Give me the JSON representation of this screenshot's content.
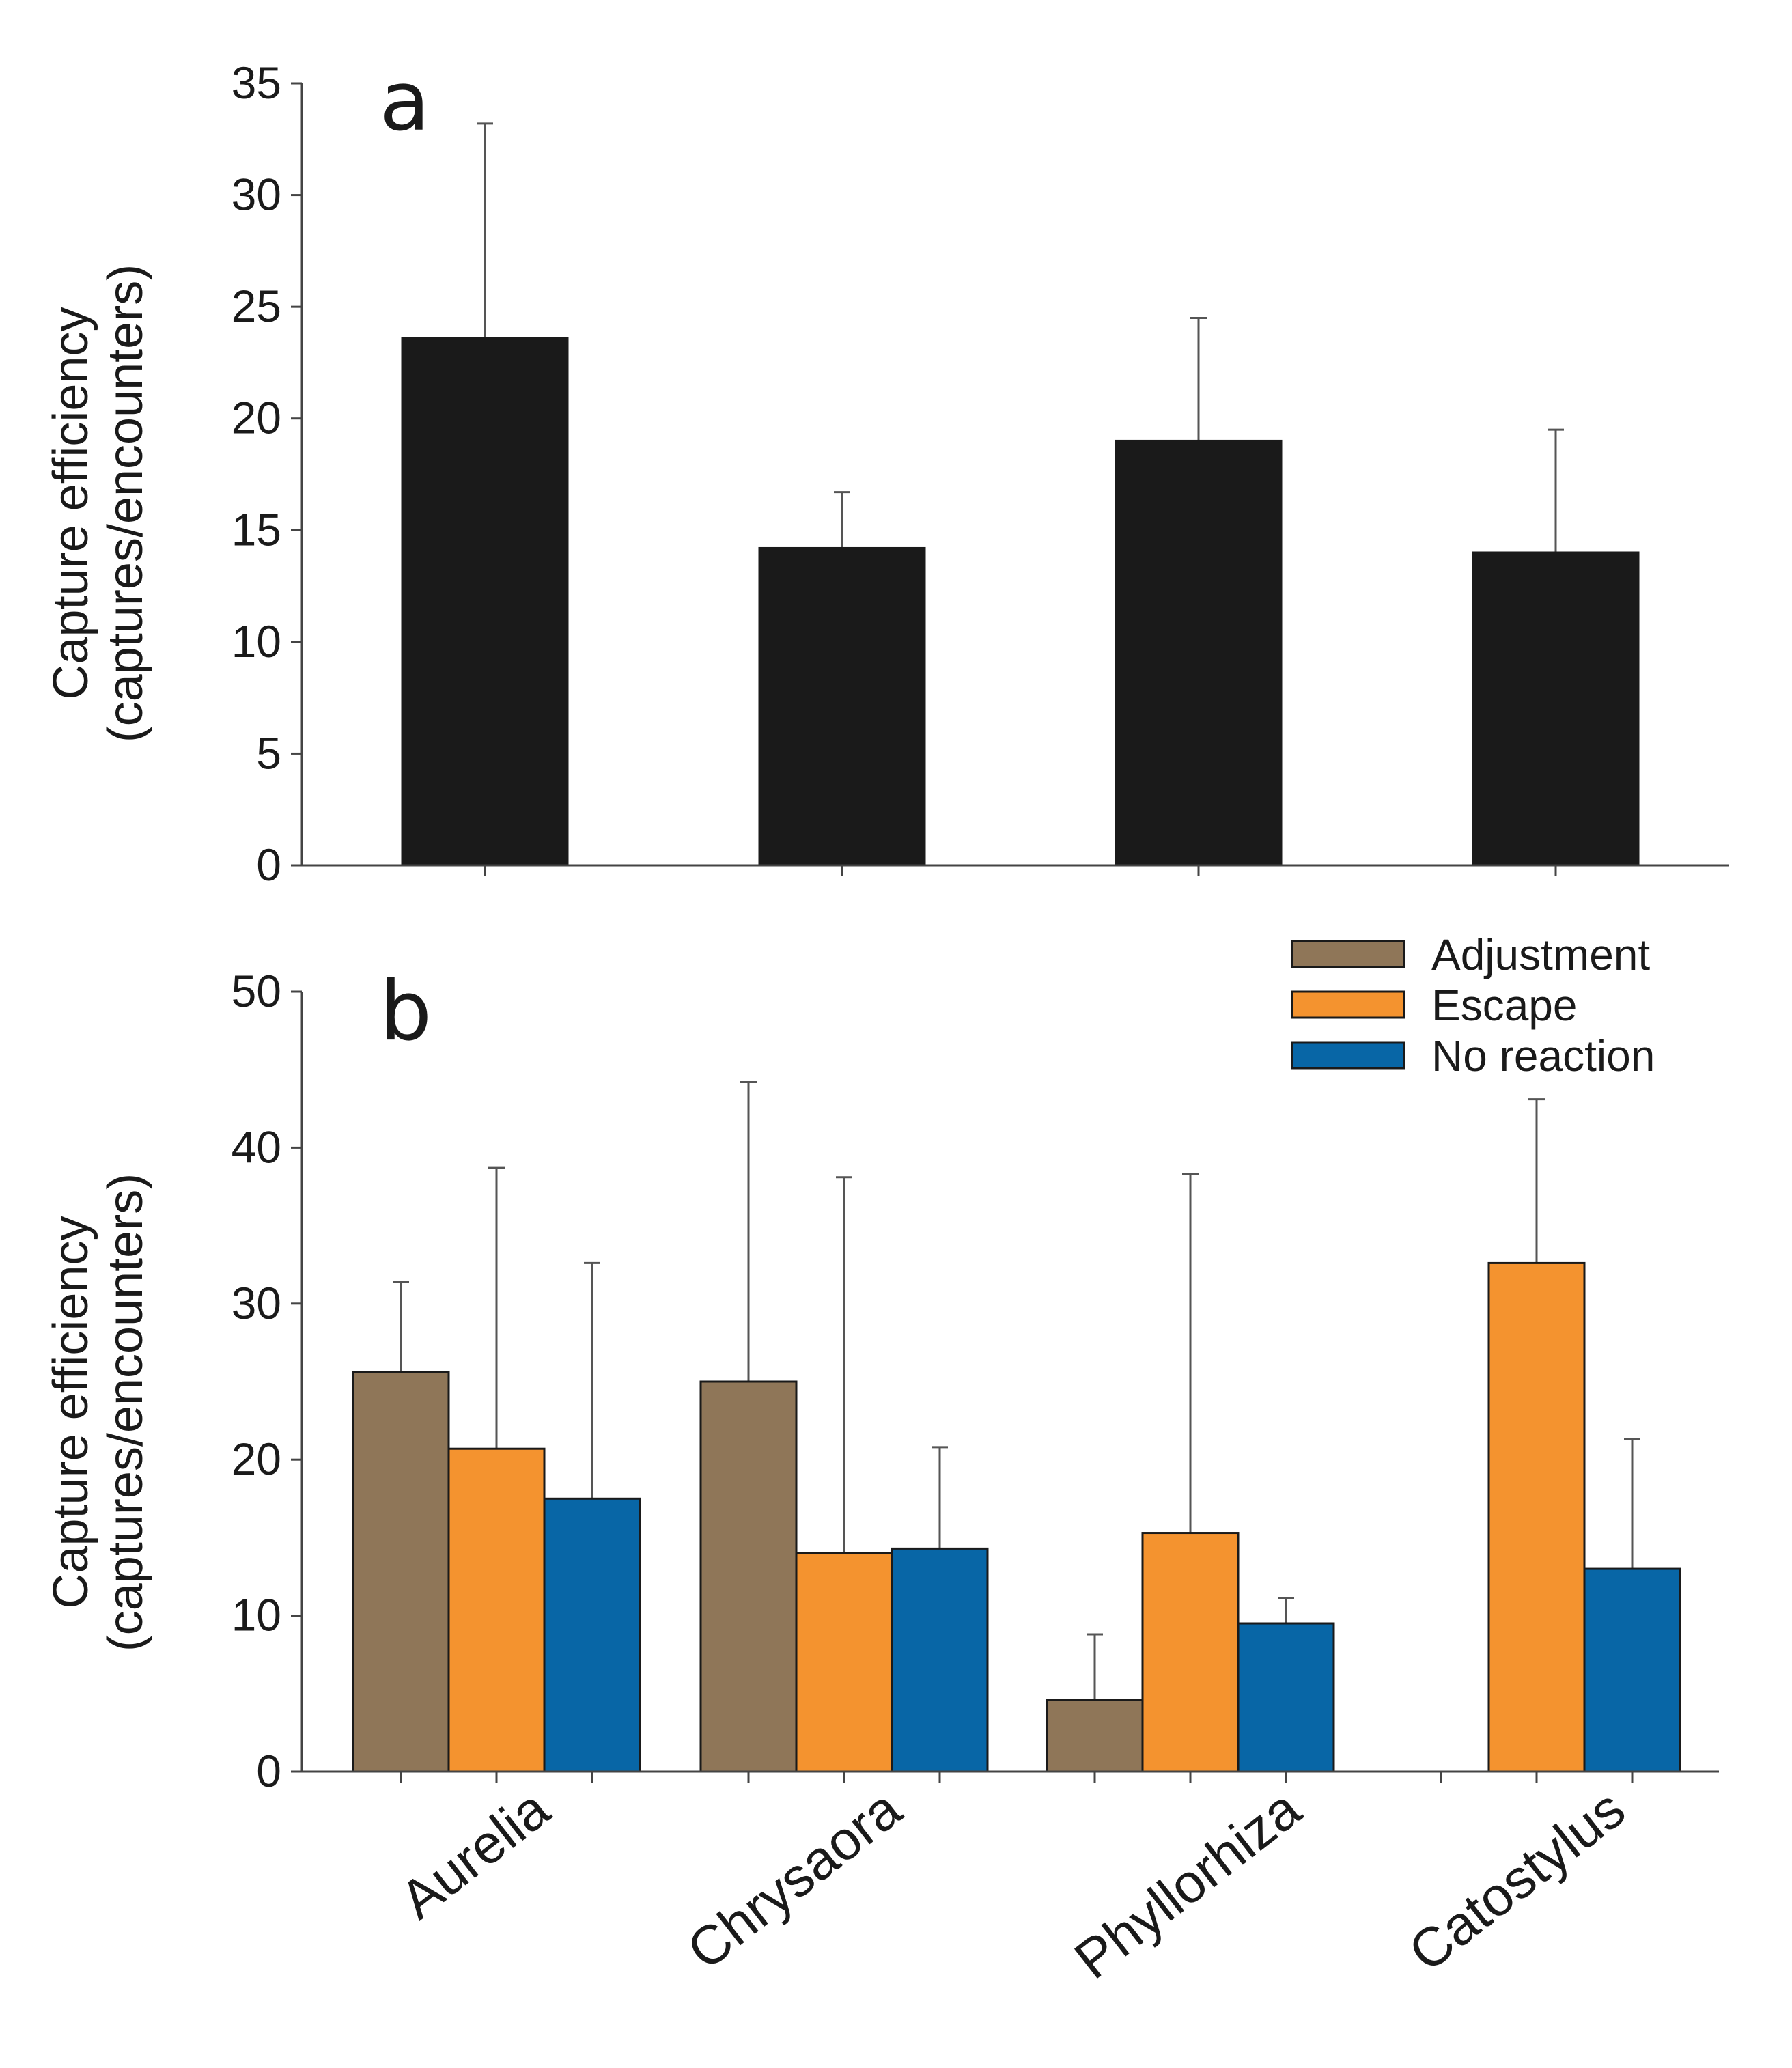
{
  "colors": {
    "panel_a_bar": "#1a1a1a",
    "adjustment": "#8f7658",
    "escape": "#f4932f",
    "no_reaction": "#0866a6",
    "bar_edge": "#1a1a1a"
  },
  "chart_data": [
    {
      "type": "bar",
      "panel": "a",
      "categories": [
        "Aurelia",
        "Chrysaora",
        "Phyllorhiza",
        "Catostylus"
      ],
      "values": [
        23.6,
        14.2,
        19.0,
        14.0
      ],
      "errors_upper": [
        33.2,
        16.7,
        24.5,
        19.5
      ],
      "ylabel_line1": "Capture efficiency",
      "ylabel_line2": "(captures/encounters)",
      "ylim": [
        0,
        35
      ],
      "yticks": [
        "0",
        "5",
        "10",
        "15",
        "20",
        "25",
        "30",
        "35"
      ],
      "ytick_values": [
        0,
        5,
        10,
        15,
        20,
        25,
        30,
        35
      ]
    },
    {
      "type": "bar",
      "panel": "b",
      "categories": [
        "Aurelia",
        "Chrysaora",
        "Phyllorhiza",
        "Catostylus"
      ],
      "series": [
        {
          "name": "Adjustment",
          "values": [
            25.6,
            25.0,
            4.6,
            null
          ],
          "errors_upper": [
            31.4,
            44.2,
            8.8,
            null
          ]
        },
        {
          "name": "Escape",
          "values": [
            20.7,
            14.0,
            15.3,
            32.6
          ],
          "errors_upper": [
            38.7,
            38.1,
            38.3,
            43.1
          ]
        },
        {
          "name": "No reaction",
          "values": [
            17.5,
            14.3,
            9.5,
            13.0
          ],
          "errors_upper": [
            32.6,
            20.8,
            11.1,
            21.3
          ]
        }
      ],
      "ylabel_line1": "Capture efficiency",
      "ylabel_line2": "(captures/encounters)",
      "ylim": [
        0,
        50
      ],
      "yticks": [
        "0",
        "10",
        "20",
        "30",
        "40",
        "50"
      ],
      "ytick_values": [
        0,
        10,
        20,
        30,
        40,
        50
      ],
      "legend_position": "top-right"
    }
  ]
}
